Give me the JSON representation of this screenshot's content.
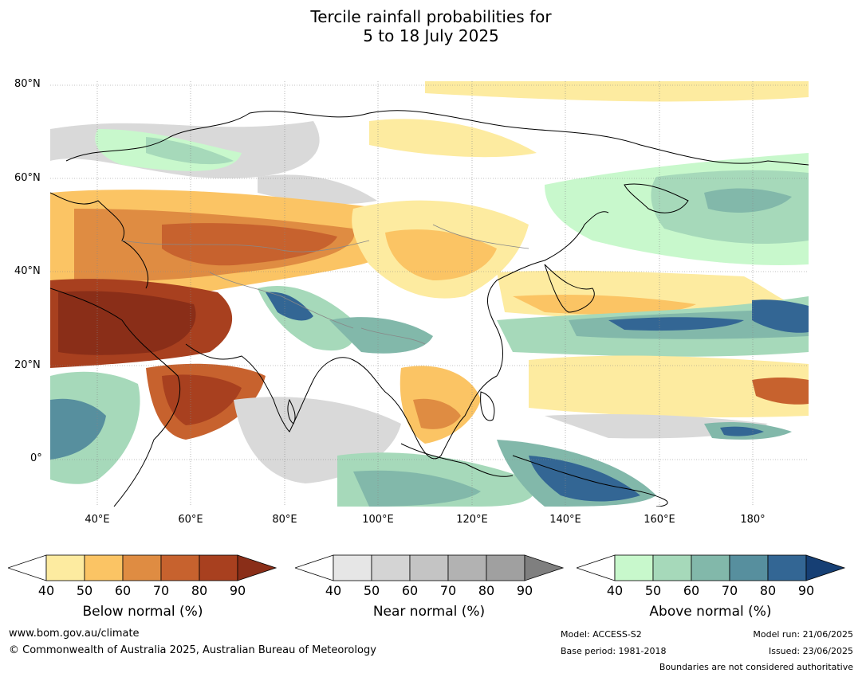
{
  "title": {
    "line1": "Tercile rainfall probabilities for",
    "line2": "5 to 18 July 2025"
  },
  "map": {
    "lat_labels": [
      "80°N",
      "60°N",
      "40°N",
      "20°N",
      "0°"
    ],
    "lon_labels": [
      "40°E",
      "60°E",
      "80°E",
      "100°E",
      "120°E",
      "140°E",
      "160°E",
      "180°"
    ],
    "extent": {
      "lon": [
        30,
        192
      ],
      "lat": [
        -10,
        81
      ]
    }
  },
  "colorbars": [
    {
      "name": "Below normal (%)",
      "ticks": [
        "40",
        "50",
        "60",
        "70",
        "80",
        "90"
      ],
      "colors": [
        "#ffffff",
        "#fdeba0",
        "#fbc464",
        "#df8c42",
        "#c7622e",
        "#a8401f",
        "#8a2e18"
      ]
    },
    {
      "name": "Near normal (%)",
      "ticks": [
        "40",
        "50",
        "60",
        "70",
        "80",
        "90"
      ],
      "colors": [
        "#ffffff",
        "#e6e6e6",
        "#d4d4d4",
        "#c4c4c4",
        "#b2b2b2",
        "#a0a0a0",
        "#7f7f7f"
      ]
    },
    {
      "name": "Above normal (%)",
      "ticks": [
        "40",
        "50",
        "60",
        "70",
        "80",
        "90"
      ],
      "colors": [
        "#ffffff",
        "#c8f8cc",
        "#a6d9ba",
        "#82b8aa",
        "#578f9e",
        "#336694",
        "#163f74"
      ]
    }
  ],
  "footer": {
    "url": "www.bom.gov.au/climate",
    "copyright": "© Commonwealth of Australia 2025, Australian Bureau of Meteorology",
    "model": "Model: ACCESS-S2",
    "base_period": "Base period: 1981-2018",
    "model_run": "Model run: 21/06/2025",
    "issued": "Issued: 23/06/2025",
    "disclaimer": "Boundaries are not considered authoritative"
  }
}
